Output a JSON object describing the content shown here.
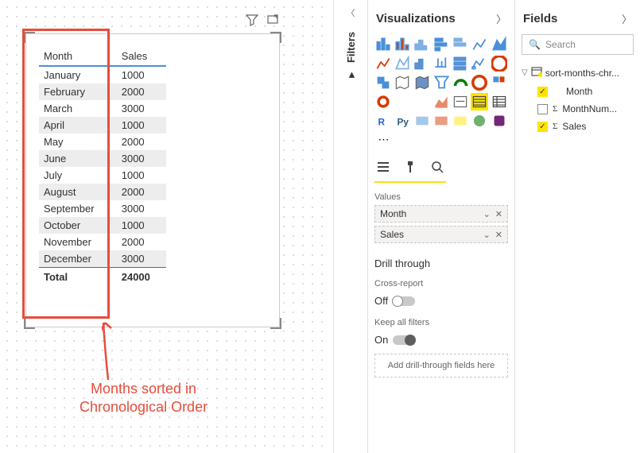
{
  "canvas": {
    "table": {
      "columns": [
        "Month",
        "Sales"
      ],
      "rows": [
        [
          "January",
          "1000"
        ],
        [
          "February",
          "2000"
        ],
        [
          "March",
          "3000"
        ],
        [
          "April",
          "1000"
        ],
        [
          "May",
          "2000"
        ],
        [
          "June",
          "3000"
        ],
        [
          "July",
          "1000"
        ],
        [
          "August",
          "2000"
        ],
        [
          "September",
          "3000"
        ],
        [
          "October",
          "1000"
        ],
        [
          "November",
          "2000"
        ],
        [
          "December",
          "3000"
        ]
      ],
      "total_label": "Total",
      "total_value": "24000"
    },
    "annotation": {
      "line1": "Months sorted in",
      "line2": "Chronological Order",
      "highlight_color": "#e74c3c"
    }
  },
  "filters": {
    "label": "Filters"
  },
  "viz": {
    "title": "Visualizations",
    "values_label": "Values",
    "wells": [
      {
        "name": "Month"
      },
      {
        "name": "Sales"
      }
    ],
    "drill": {
      "title": "Drill through",
      "cross_label": "Cross-report",
      "off": "Off",
      "keep_label": "Keep all filters",
      "on": "On",
      "add_hint": "Add drill-through fields here"
    }
  },
  "fields": {
    "title": "Fields",
    "search_placeholder": "Search",
    "table_name": "sort-months-chr...",
    "items": [
      {
        "name": "Month",
        "checked": true,
        "sigma": false
      },
      {
        "name": "MonthNum...",
        "checked": false,
        "sigma": true
      },
      {
        "name": "Sales",
        "checked": true,
        "sigma": true
      }
    ]
  }
}
